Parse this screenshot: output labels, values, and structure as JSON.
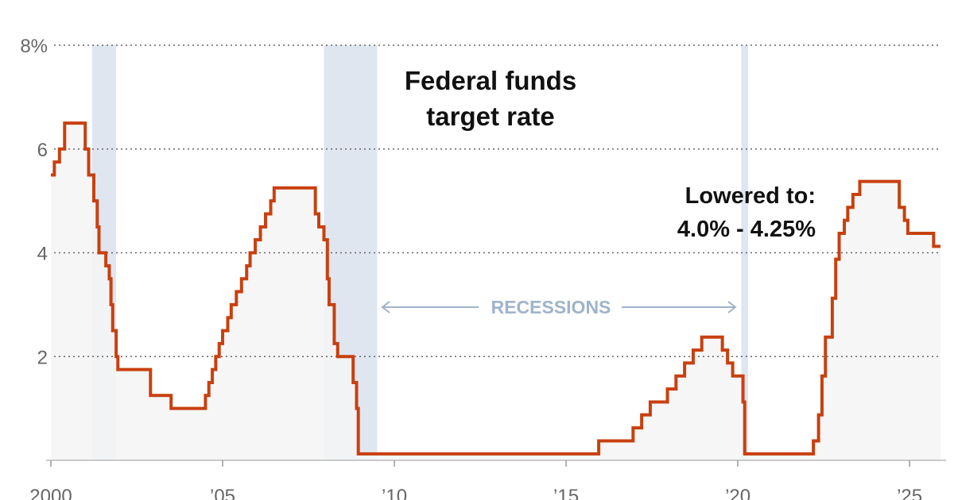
{
  "chart_data": {
    "type": "area",
    "title": "",
    "annotation_title": [
      "Federal funds",
      "target rate"
    ],
    "xlabel": "",
    "ylabel": "",
    "x_ticks": [
      {
        "value": 2000,
        "label": "2000"
      },
      {
        "value": 2005,
        "label": "’05"
      },
      {
        "value": 2010,
        "label": "’10"
      },
      {
        "value": 2015,
        "label": "’15"
      },
      {
        "value": 2020,
        "label": "’20"
      },
      {
        "value": 2025,
        "label": "’25"
      }
    ],
    "y_ticks": [
      {
        "value": 2,
        "label": "2"
      },
      {
        "value": 4,
        "label": "4"
      },
      {
        "value": 6,
        "label": "6"
      },
      {
        "value": 8,
        "label": "8%"
      }
    ],
    "xlim": [
      2000,
      2025.9
    ],
    "ylim": [
      0,
      8
    ],
    "grid": "horizontal dotted",
    "colors": {
      "line": "#c8400f",
      "fill": "#f5f5f5",
      "recession": "#dfe6f0",
      "recession_text": "#9fb3cb",
      "grid": "#666666",
      "axis": "#999999"
    },
    "recessions": [
      {
        "start": 2001.2,
        "end": 2001.9
      },
      {
        "start": 2007.95,
        "end": 2009.5
      },
      {
        "start": 2020.1,
        "end": 2020.3
      }
    ],
    "recession_label": "RECESSIONS",
    "annotation": [
      "Lowered to:",
      "4.0% - 4.25%"
    ],
    "series": [
      {
        "step": true,
        "points": [
          [
            2000.0,
            5.5
          ],
          [
            2000.1,
            5.75
          ],
          [
            2000.25,
            6.0
          ],
          [
            2000.4,
            6.5
          ],
          [
            2001.0,
            6.0
          ],
          [
            2001.1,
            5.5
          ],
          [
            2001.25,
            5.0
          ],
          [
            2001.35,
            4.5
          ],
          [
            2001.4,
            4.0
          ],
          [
            2001.6,
            3.75
          ],
          [
            2001.7,
            3.5
          ],
          [
            2001.75,
            3.0
          ],
          [
            2001.8,
            2.5
          ],
          [
            2001.9,
            2.0
          ],
          [
            2001.95,
            1.75
          ],
          [
            2002.9,
            1.25
          ],
          [
            2003.5,
            1.0
          ],
          [
            2004.5,
            1.25
          ],
          [
            2004.6,
            1.5
          ],
          [
            2004.7,
            1.75
          ],
          [
            2004.8,
            2.0
          ],
          [
            2004.9,
            2.25
          ],
          [
            2005.0,
            2.5
          ],
          [
            2005.15,
            2.75
          ],
          [
            2005.25,
            3.0
          ],
          [
            2005.4,
            3.25
          ],
          [
            2005.55,
            3.5
          ],
          [
            2005.7,
            3.75
          ],
          [
            2005.8,
            4.0
          ],
          [
            2005.95,
            4.25
          ],
          [
            2006.1,
            4.5
          ],
          [
            2006.25,
            4.75
          ],
          [
            2006.4,
            5.0
          ],
          [
            2006.5,
            5.25
          ],
          [
            2007.7,
            4.75
          ],
          [
            2007.8,
            4.5
          ],
          [
            2007.95,
            4.25
          ],
          [
            2008.05,
            3.5
          ],
          [
            2008.1,
            3.0
          ],
          [
            2008.25,
            2.25
          ],
          [
            2008.35,
            2.0
          ],
          [
            2008.8,
            1.5
          ],
          [
            2008.9,
            1.0
          ],
          [
            2008.95,
            0.125
          ],
          [
            2015.95,
            0.375
          ],
          [
            2016.95,
            0.625
          ],
          [
            2017.2,
            0.875
          ],
          [
            2017.45,
            1.125
          ],
          [
            2017.95,
            1.375
          ],
          [
            2018.2,
            1.625
          ],
          [
            2018.45,
            1.875
          ],
          [
            2018.7,
            2.125
          ],
          [
            2018.95,
            2.375
          ],
          [
            2019.55,
            2.125
          ],
          [
            2019.7,
            1.875
          ],
          [
            2019.85,
            1.625
          ],
          [
            2020.15,
            1.125
          ],
          [
            2020.2,
            0.125
          ],
          [
            2022.2,
            0.375
          ],
          [
            2022.35,
            0.875
          ],
          [
            2022.45,
            1.625
          ],
          [
            2022.55,
            2.375
          ],
          [
            2022.75,
            3.125
          ],
          [
            2022.85,
            3.875
          ],
          [
            2022.95,
            4.375
          ],
          [
            2023.1,
            4.625
          ],
          [
            2023.2,
            4.875
          ],
          [
            2023.35,
            5.125
          ],
          [
            2023.55,
            5.375
          ],
          [
            2024.7,
            4.875
          ],
          [
            2024.85,
            4.625
          ],
          [
            2024.95,
            4.375
          ],
          [
            2025.7,
            4.125
          ],
          [
            2025.9,
            4.125
          ]
        ]
      }
    ]
  }
}
